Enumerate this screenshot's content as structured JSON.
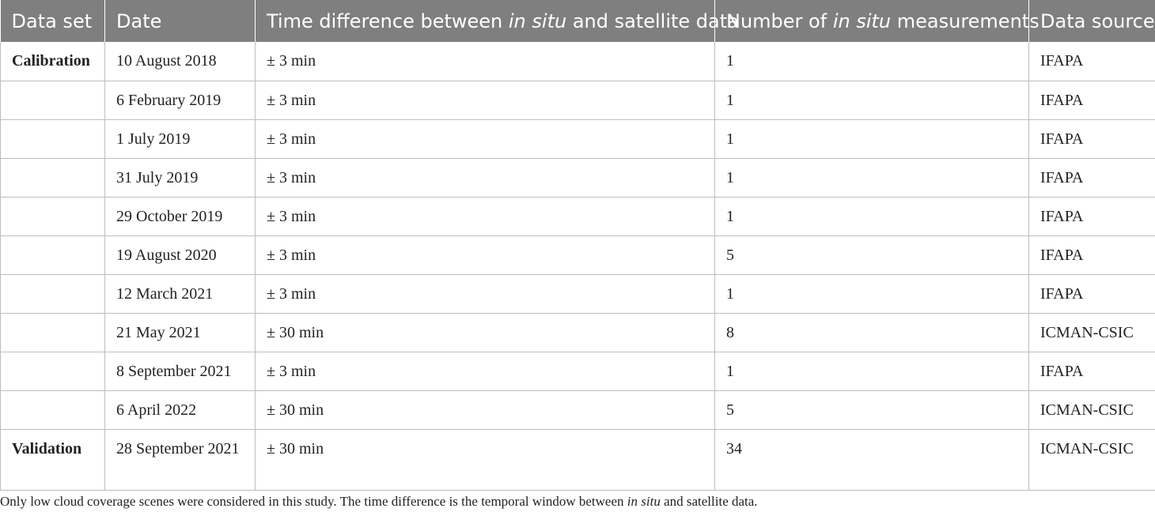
{
  "table": {
    "headers": {
      "data_set": "Data set",
      "date": "Date",
      "time_diff_pre": "Time difference between ",
      "time_diff_em": "in situ",
      "time_diff_post": " and satellite data",
      "num_pre": "Number of ",
      "num_em": "in situ",
      "num_post": " measurements",
      "source": "Data source"
    },
    "rows": [
      {
        "group": "Calibration",
        "date": "10 August 2018",
        "time_diff": "± 3 min",
        "count": "1",
        "source": "IFAPA"
      },
      {
        "group": "",
        "date": "6 February 2019",
        "time_diff": "± 3 min",
        "count": "1",
        "source": "IFAPA"
      },
      {
        "group": "",
        "date": "1 July 2019",
        "time_diff": "± 3 min",
        "count": "1",
        "source": "IFAPA"
      },
      {
        "group": "",
        "date": "31 July 2019",
        "time_diff": "± 3 min",
        "count": "1",
        "source": "IFAPA"
      },
      {
        "group": "",
        "date": "29 October 2019",
        "time_diff": "± 3 min",
        "count": "1",
        "source": "IFAPA"
      },
      {
        "group": "",
        "date": "19 August 2020",
        "time_diff": "± 3 min",
        "count": "5",
        "source": "IFAPA"
      },
      {
        "group": "",
        "date": "12 March 2021",
        "time_diff": "± 3 min",
        "count": "1",
        "source": "IFAPA"
      },
      {
        "group": "",
        "date": "21 May 2021",
        "time_diff": "± 30 min",
        "count": "8",
        "source": "ICMAN-CSIC"
      },
      {
        "group": "",
        "date": "8 September 2021",
        "time_diff": "± 3 min",
        "count": "1",
        "source": "IFAPA"
      },
      {
        "group": "",
        "date": "6 April 2022",
        "time_diff": "± 30 min",
        "count": "5",
        "source": "ICMAN-CSIC"
      },
      {
        "group": "Validation",
        "date": "28 September 2021",
        "time_diff": "± 30 min",
        "count": "34",
        "source": "ICMAN-CSIC"
      }
    ]
  },
  "footnote": {
    "pre": "Only low cloud coverage scenes were considered in this study. The time difference is the temporal window between ",
    "em": "in situ",
    "post": " and satellite data."
  }
}
